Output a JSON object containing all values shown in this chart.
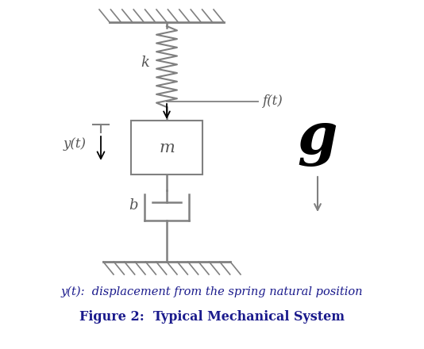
{
  "fig_width": 5.34,
  "fig_height": 4.4,
  "dpi": 100,
  "bg_color": "#ffffff",
  "line_color": "#808080",
  "text_color": "#555555",
  "caption_color": "#1a1a8c",
  "caption1": "y(t):  displacement from the spring natural position",
  "caption2": "Figure 2:  Typical Mechanical System",
  "label_k": "k",
  "label_m": "m",
  "label_b": "b",
  "label_ft": "f(t)",
  "label_yt": "y(t)",
  "label_g": "g",
  "g_fontsize": 52,
  "caption1_fontsize": 10.5,
  "caption2_fontsize": 11.5
}
